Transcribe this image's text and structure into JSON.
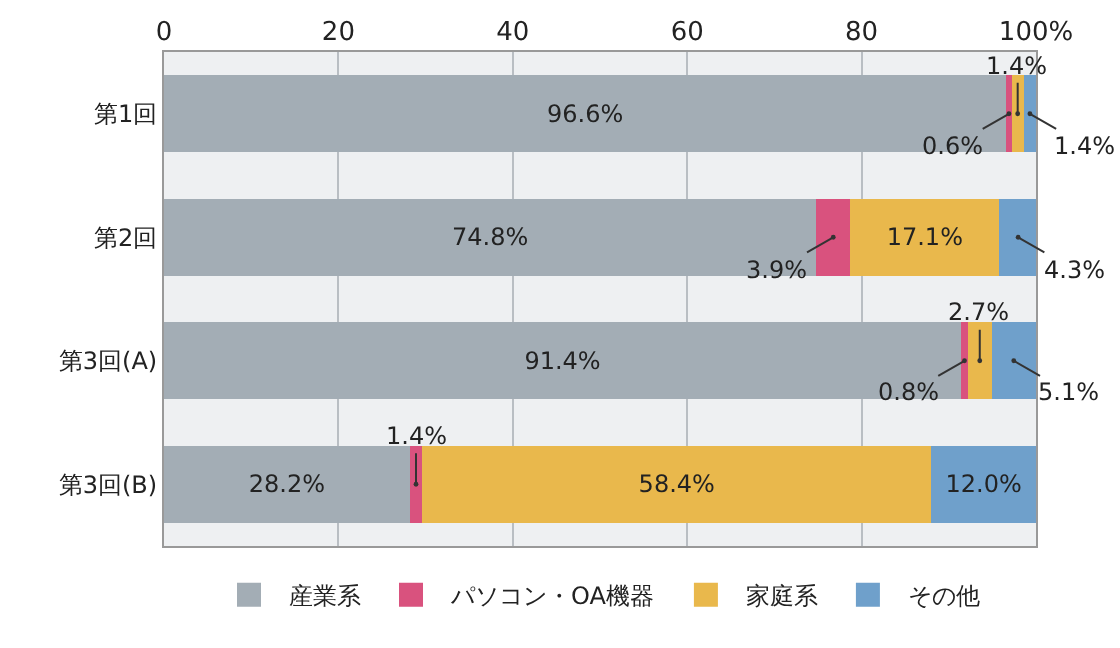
{
  "chart_data": {
    "type": "bar",
    "orientation": "horizontal",
    "stacked": true,
    "categories": [
      "第1回",
      "第2回",
      "第3回(A)",
      "第3回(B)"
    ],
    "series": [
      {
        "name": "産業系",
        "color": "#a3adb5",
        "values": [
          96.6,
          74.8,
          91.4,
          28.2
        ],
        "value_labels": [
          "96.6%",
          "74.8%",
          "91.4%",
          "28.2%"
        ]
      },
      {
        "name": "パソコン・OA機器",
        "color": "#d9527e",
        "values": [
          0.6,
          3.9,
          0.8,
          1.4
        ],
        "value_labels": [
          "0.6%",
          "3.9%",
          "0.8%",
          "1.4%"
        ]
      },
      {
        "name": "家庭系",
        "color": "#e9b84c",
        "values": [
          1.4,
          17.1,
          2.7,
          58.4
        ],
        "value_labels": [
          "1.4%",
          "17.1%",
          "2.7%",
          "58.4%"
        ]
      },
      {
        "name": "その他",
        "color": "#6fa0cb",
        "values": [
          1.4,
          4.3,
          5.1,
          12.0
        ],
        "value_labels": [
          "1.4%",
          "4.3%",
          "5.1%",
          "12.0%"
        ]
      }
    ],
    "xlim": [
      0,
      100
    ],
    "xticks": [
      0,
      20,
      40,
      60,
      80,
      {
        "value": 100,
        "label": "100%"
      }
    ],
    "grid": "x",
    "legend": "bottom"
  }
}
